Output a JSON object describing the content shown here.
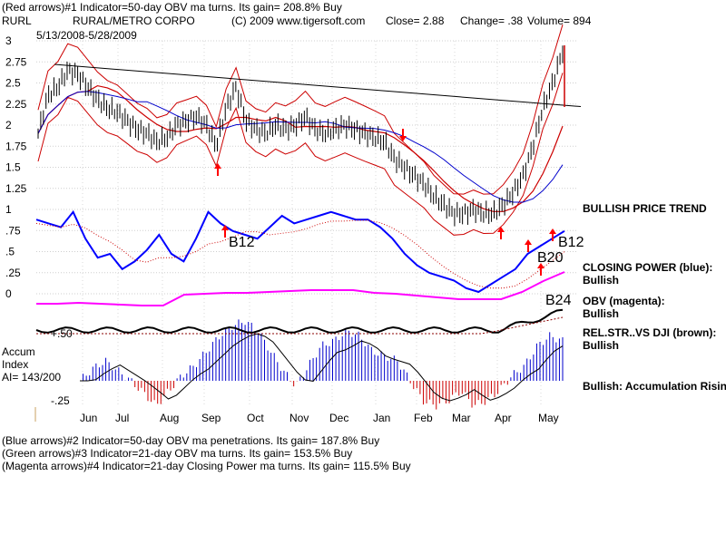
{
  "header": {
    "line1": "(Red arrows)#1 Indicator=50-day OBV ma turns. Its gain= 208.8% Buy",
    "ticker": "RURL",
    "company": "RURAL/METRO CORPO",
    "copyright": "(C) 2009 www.tigersoft.com",
    "close": "Close=  2.88",
    "change": "Change= .38",
    "volume": "Volume= 894",
    "date_range": "5/13/2008-5/28/2009"
  },
  "footer": {
    "line1": "(Blue arrows)#2 Indicator=50-day OBV ma penetrations. Its gain= 187.8% Buy",
    "line2": "(Green arrows)#3 Indicator=21-day OBV ma turns. Its gain= 153.5% Buy",
    "line3": "(Magenta arrows)#4 Indicator=21-day Closing Power ma turns. Its gain= 115.5% Buy"
  },
  "right_panel": {
    "price_trend": "BULLISH PRICE TREND",
    "closing_power_label": "CLOSING POWER (blue):",
    "closing_power_value": "Bullish",
    "obv_label": "OBV (magenta):",
    "obv_value": "Bullish",
    "relstr_label": "REL.STR..VS DJI (brown):",
    "relstr_value": "Bullish",
    "accum_label": "Bullish: Accumulation Rising"
  },
  "accum": {
    "title1": "Accum",
    "title2": "Index",
    "ai": "AI= 143/200",
    "tick_pos": "+.50",
    "tick_neg": "-.25"
  },
  "annotations": [
    "B12",
    "B12",
    "B20",
    "B24"
  ],
  "colors": {
    "price_bars": "#000000",
    "bollinger": "#cc0000",
    "ma_blue": "#0000cc",
    "closing_power": "#0000ff",
    "obv": "#ff00ff",
    "rel_str": "#8b0000",
    "accum_pos": "#0000cc",
    "accum_neg": "#cc0000",
    "arrows": "#ff0000"
  },
  "chart_data": {
    "type": "line",
    "title": "RURAL/METRO CORPO",
    "ylim": [
      0,
      3
    ],
    "y_ticks": [
      "3",
      "2.75",
      "2.5",
      "2.25",
      "2",
      "1.75",
      "1.5",
      "1.25",
      "1",
      ".75",
      ".5",
      ".25",
      "0"
    ],
    "months": [
      "Jun",
      "Jul",
      "Aug",
      "Sep",
      "Oct",
      "Nov",
      "Dec",
      "Jan",
      "Feb",
      "Mar",
      "Apr",
      "May"
    ],
    "price_close": [
      1.9,
      2.35,
      2.45,
      2.65,
      2.6,
      2.45,
      2.3,
      2.2,
      2.15,
      2.05,
      1.95,
      1.9,
      1.8,
      1.85,
      2.0,
      2.05,
      2.1,
      2.0,
      1.75,
      2.2,
      2.45,
      2.05,
      1.95,
      1.9,
      2.0,
      1.95,
      2.0,
      2.1,
      1.95,
      1.9,
      1.95,
      2.0,
      1.95,
      1.9,
      1.85,
      1.8,
      1.6,
      1.5,
      1.4,
      1.3,
      1.15,
      1.05,
      0.95,
      0.95,
      1.0,
      0.95,
      0.95,
      1.05,
      1.2,
      1.4,
      1.75,
      2.2,
      2.5,
      2.88
    ],
    "closing_power": [
      0.95,
      0.9,
      0.85,
      1.05,
      0.7,
      0.45,
      0.5,
      0.3,
      0.4,
      0.55,
      0.75,
      0.5,
      0.4,
      0.7,
      1.05,
      0.9,
      0.8,
      0.75,
      0.7,
      0.85,
      1.0,
      0.9,
      0.95,
      1.0,
      1.05,
      1.0,
      0.95,
      0.95,
      0.85,
      0.7,
      0.5,
      0.35,
      0.25,
      0.2,
      0.15,
      0.05,
      0.0,
      0.1,
      0.2,
      0.3,
      0.5,
      0.6,
      0.7,
      0.8
    ],
    "obv": [
      0.05,
      0.05,
      0.06,
      0.05,
      0.04,
      0.03,
      0.03,
      0.15,
      0.16,
      0.17,
      0.17,
      0.18,
      0.19,
      0.2,
      0.2,
      0.2,
      0.17,
      0.16,
      0.14,
      0.12,
      0.1,
      0.1,
      0.1,
      0.18,
      0.3,
      0.4
    ],
    "trendline": [
      [
        0.03,
        2.72
      ],
      [
        0.96,
        2.22
      ]
    ],
    "accum_index": [
      0.0,
      0.12,
      0.2,
      0.1,
      0.0,
      -0.12,
      -0.25,
      -0.1,
      0.05,
      0.15,
      0.3,
      0.45,
      0.55,
      0.6,
      0.5,
      0.3,
      0.1,
      -0.05,
      0.15,
      0.35,
      0.4,
      0.5,
      0.45,
      0.3,
      0.25,
      0.2,
      0.0,
      -0.2,
      -0.25,
      -0.2,
      -0.1,
      -0.25,
      -0.2,
      -0.1,
      0.05,
      0.15,
      0.35,
      0.45,
      0.4
    ]
  }
}
